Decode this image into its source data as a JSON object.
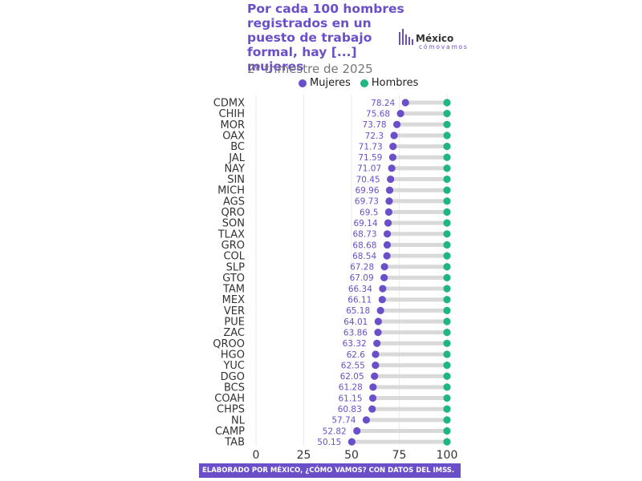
{
  "header": {
    "title": "Por cada 100 hombres registrados en un puesto de trabajo formal, hay [...] mujeres",
    "subtitle": "2º trimestre de 2025"
  },
  "logo": {
    "main": "México",
    "sub": "cómovamos"
  },
  "footer": {
    "text": "ELABORADO POR MÉXICO, ¿CÓMO VAMOS? CON DATOS DEL IMSS."
  },
  "colors": {
    "mujeres": "#6a4fc8",
    "hombres": "#1fb584",
    "bar": "#d9d9d9",
    "label": "#6a4fc8",
    "grid": "#ebebeb"
  },
  "chart_data": {
    "type": "dot-range",
    "title": "Por cada 100 hombres registrados en un puesto de trabajo formal, hay [...] mujeres",
    "subtitle": "2º trimestre de 2025",
    "legend_position": "top",
    "grid": true,
    "xlim": [
      0,
      100
    ],
    "xticks": [
      0,
      25,
      50,
      75,
      100
    ],
    "categories": [
      "CDMX",
      "CHIH",
      "MOR",
      "OAX",
      "BC",
      "JAL",
      "NAY",
      "SIN",
      "MICH",
      "AGS",
      "QRO",
      "SON",
      "TLAX",
      "GRO",
      "COL",
      "SLP",
      "GTO",
      "TAM",
      "MEX",
      "VER",
      "PUE",
      "ZAC",
      "QROO",
      "HGO",
      "YUC",
      "DGO",
      "BCS",
      "COAH",
      "CHPS",
      "NL",
      "CAMP",
      "TAB"
    ],
    "series": [
      {
        "name": "Mujeres",
        "labels": [
          "78.24",
          "75.68",
          "73.78",
          "72.3",
          "71.73",
          "71.59",
          "71.07",
          "70.45",
          "69.96",
          "69.73",
          "69.5",
          "69.14",
          "68.73",
          "68.68",
          "68.54",
          "67.28",
          "67.09",
          "66.34",
          "66.11",
          "65.18",
          "64.01",
          "63.86",
          "63.32",
          "62.6",
          "62.55",
          "62.05",
          "61.28",
          "61.15",
          "60.83",
          "57.74",
          "52.82",
          "50.15"
        ],
        "values": [
          78.24,
          75.68,
          73.78,
          72.3,
          71.73,
          71.59,
          71.07,
          70.45,
          69.96,
          69.73,
          69.5,
          69.14,
          68.73,
          68.68,
          68.54,
          67.28,
          67.09,
          66.34,
          66.11,
          65.18,
          64.01,
          63.86,
          63.32,
          62.6,
          62.55,
          62.05,
          61.28,
          61.15,
          60.83,
          57.74,
          52.82,
          50.15
        ]
      },
      {
        "name": "Hombres",
        "values": [
          100,
          100,
          100,
          100,
          100,
          100,
          100,
          100,
          100,
          100,
          100,
          100,
          100,
          100,
          100,
          100,
          100,
          100,
          100,
          100,
          100,
          100,
          100,
          100,
          100,
          100,
          100,
          100,
          100,
          100,
          100,
          100
        ]
      }
    ]
  }
}
